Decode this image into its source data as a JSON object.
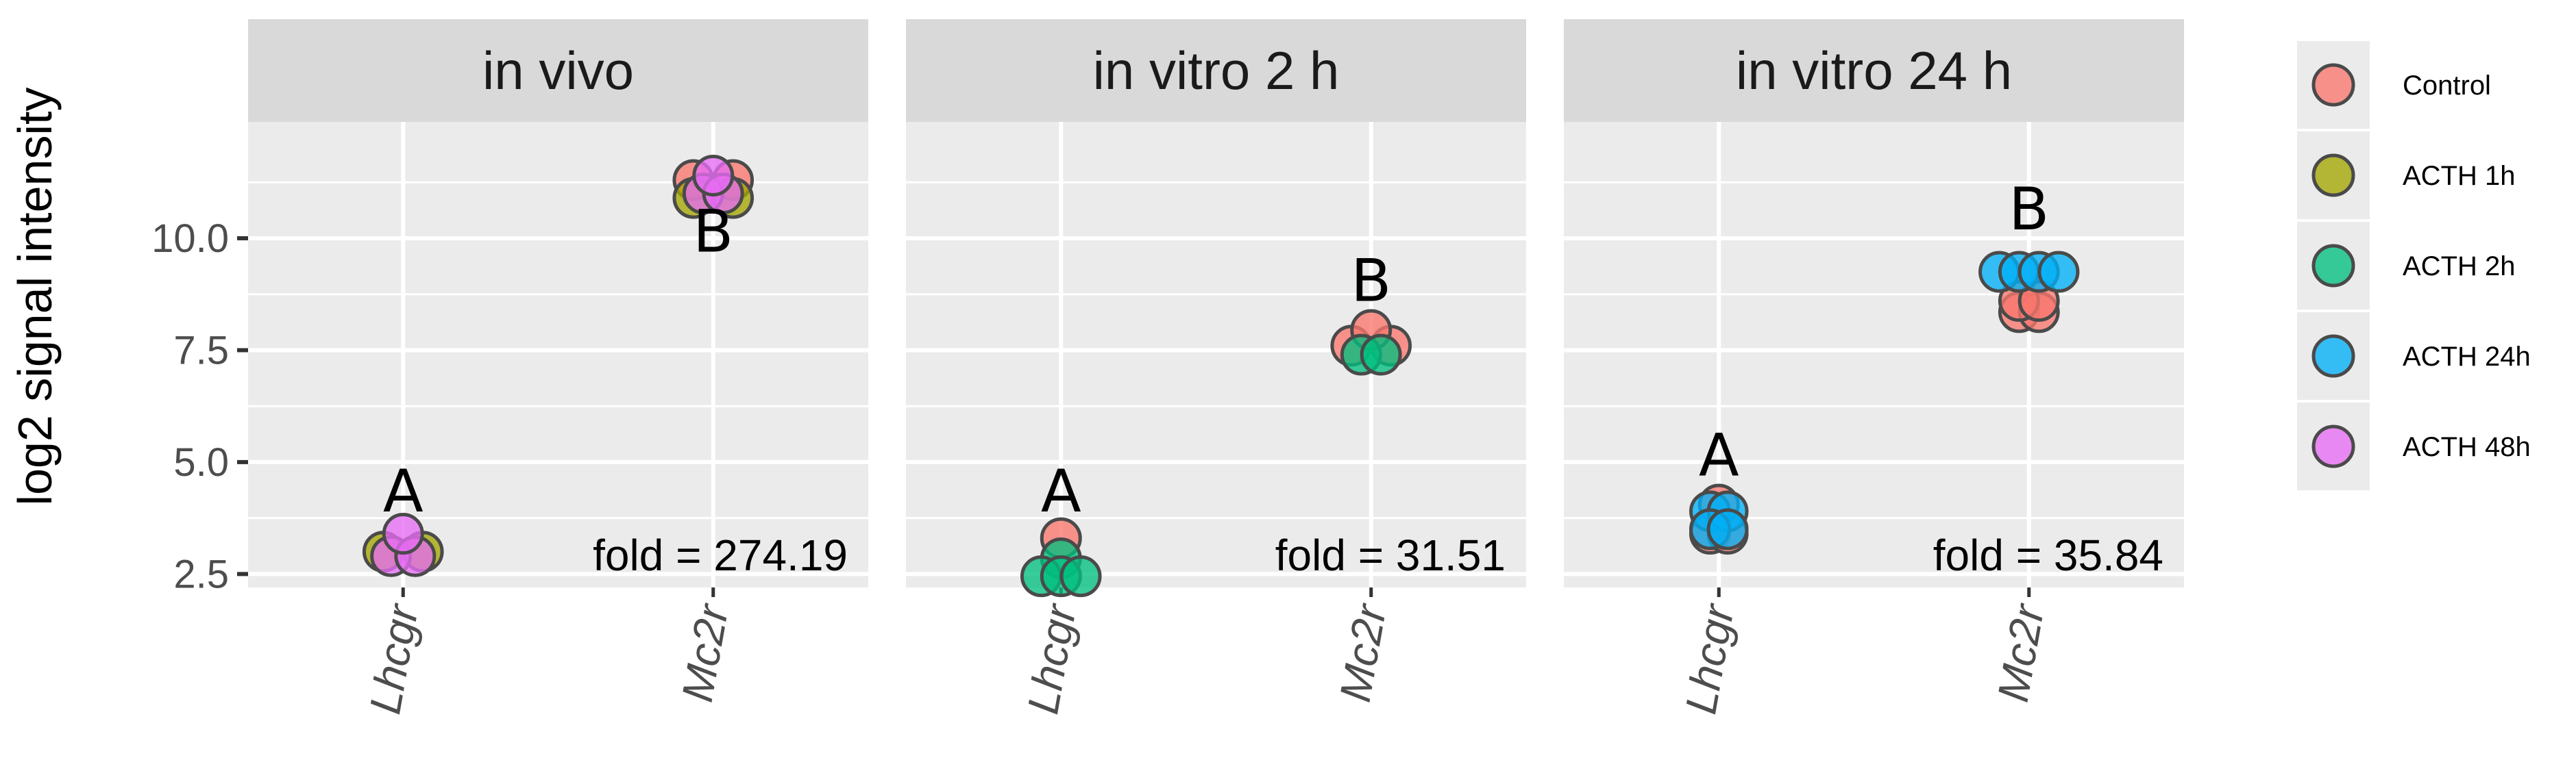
{
  "chart_data": {
    "type": "scatter",
    "ylabel": "log2 signal intensity",
    "xlabel": "",
    "ylim": [
      2.2,
      12.6
    ],
    "yticks": [
      2.5,
      5.0,
      7.5,
      10.0
    ],
    "ytick_labels": [
      "2.5",
      "5.0",
      "7.5",
      "10.0"
    ],
    "categories": [
      "Lhcgr",
      "Mc2r"
    ],
    "grid": true,
    "legend_position": "right",
    "legend": [
      {
        "name": "Control",
        "color": "#F8766D"
      },
      {
        "name": "ACTH 1h",
        "color": "#A3A500"
      },
      {
        "name": "ACTH 2h",
        "color": "#00BF7D"
      },
      {
        "name": "ACTH 24h",
        "color": "#00B0F6"
      },
      {
        "name": "ACTH 48h",
        "color": "#E76BF3"
      }
    ],
    "panels": [
      {
        "title": "in vivo",
        "fold_label": "fold =  274.19",
        "letters": [
          {
            "text": "A",
            "category": "Lhcgr",
            "y": 3.9
          },
          {
            "text": "B",
            "category": "Mc2r",
            "y": 9.7
          }
        ],
        "points": [
          {
            "category": "Lhcgr",
            "group": "ACTH 1h",
            "dx": -0.18,
            "y": 3.0
          },
          {
            "category": "Lhcgr",
            "group": "ACTH 1h",
            "dx": 0.18,
            "y": 3.0
          },
          {
            "category": "Lhcgr",
            "group": "ACTH 48h",
            "dx": -0.11,
            "y": 2.9
          },
          {
            "category": "Lhcgr",
            "group": "ACTH 48h",
            "dx": 0.11,
            "y": 2.9
          },
          {
            "category": "Lhcgr",
            "group": "ACTH 48h",
            "dx": 0.0,
            "y": 3.4
          },
          {
            "category": "Mc2r",
            "group": "Control",
            "dx": -0.18,
            "y": 11.3
          },
          {
            "category": "Mc2r",
            "group": "Control",
            "dx": 0.18,
            "y": 11.3
          },
          {
            "category": "Mc2r",
            "group": "ACTH 1h",
            "dx": -0.18,
            "y": 10.9
          },
          {
            "category": "Mc2r",
            "group": "ACTH 1h",
            "dx": 0.18,
            "y": 10.9
          },
          {
            "category": "Mc2r",
            "group": "ACTH 48h",
            "dx": -0.09,
            "y": 11.0
          },
          {
            "category": "Mc2r",
            "group": "ACTH 48h",
            "dx": 0.09,
            "y": 11.0
          },
          {
            "category": "Mc2r",
            "group": "ACTH 48h",
            "dx": 0.0,
            "y": 11.4
          }
        ]
      },
      {
        "title": "in vitro 2 h",
        "fold_label": "fold =  31.51",
        "letters": [
          {
            "text": "A",
            "category": "Lhcgr",
            "y": 3.9
          },
          {
            "text": "B",
            "category": "Mc2r",
            "y": 8.6
          }
        ],
        "points": [
          {
            "category": "Lhcgr",
            "group": "Control",
            "dx": 0.0,
            "y": 3.3
          },
          {
            "category": "Lhcgr",
            "group": "ACTH 2h",
            "dx": 0.0,
            "y": 2.85
          },
          {
            "category": "Lhcgr",
            "group": "ACTH 2h",
            "dx": -0.18,
            "y": 2.45
          },
          {
            "category": "Lhcgr",
            "group": "ACTH 2h",
            "dx": 0.0,
            "y": 2.45
          },
          {
            "category": "Lhcgr",
            "group": "ACTH 2h",
            "dx": 0.18,
            "y": 2.45
          },
          {
            "category": "Mc2r",
            "group": "Control",
            "dx": -0.18,
            "y": 7.6
          },
          {
            "category": "Mc2r",
            "group": "Control",
            "dx": 0.18,
            "y": 7.6
          },
          {
            "category": "Mc2r",
            "group": "Control",
            "dx": 0.0,
            "y": 7.95
          },
          {
            "category": "Mc2r",
            "group": "ACTH 2h",
            "dx": -0.09,
            "y": 7.4
          },
          {
            "category": "Mc2r",
            "group": "ACTH 2h",
            "dx": 0.09,
            "y": 7.4
          }
        ]
      },
      {
        "title": "in vitro 24 h",
        "fold_label": "fold =  35.84",
        "letters": [
          {
            "text": "A",
            "category": "Lhcgr",
            "y": 4.7
          },
          {
            "text": "B",
            "category": "Mc2r",
            "y": 10.2
          }
        ],
        "points": [
          {
            "category": "Lhcgr",
            "group": "Control",
            "dx": -0.08,
            "y": 3.4
          },
          {
            "category": "Lhcgr",
            "group": "Control",
            "dx": 0.08,
            "y": 3.4
          },
          {
            "category": "Lhcgr",
            "group": "Control",
            "dx": 0.0,
            "y": 4.05
          },
          {
            "category": "Lhcgr",
            "group": "ACTH 24h",
            "dx": -0.08,
            "y": 3.9
          },
          {
            "category": "Lhcgr",
            "group": "ACTH 24h",
            "dx": 0.08,
            "y": 3.9
          },
          {
            "category": "Lhcgr",
            "group": "ACTH 24h",
            "dx": -0.08,
            "y": 3.5
          },
          {
            "category": "Lhcgr",
            "group": "ACTH 24h",
            "dx": 0.08,
            "y": 3.5
          },
          {
            "category": "Mc2r",
            "group": "Control",
            "dx": -0.09,
            "y": 8.35
          },
          {
            "category": "Mc2r",
            "group": "Control",
            "dx": 0.09,
            "y": 8.35
          },
          {
            "category": "Mc2r",
            "group": "Control",
            "dx": -0.09,
            "y": 8.6
          },
          {
            "category": "Mc2r",
            "group": "Control",
            "dx": 0.09,
            "y": 8.6
          },
          {
            "category": "Mc2r",
            "group": "ACTH 24h",
            "dx": -0.27,
            "y": 9.25
          },
          {
            "category": "Mc2r",
            "group": "ACTH 24h",
            "dx": -0.09,
            "y": 9.25
          },
          {
            "category": "Mc2r",
            "group": "ACTH 24h",
            "dx": 0.09,
            "y": 9.25
          },
          {
            "category": "Mc2r",
            "group": "ACTH 24h",
            "dx": 0.27,
            "y": 9.25
          }
        ]
      }
    ]
  }
}
